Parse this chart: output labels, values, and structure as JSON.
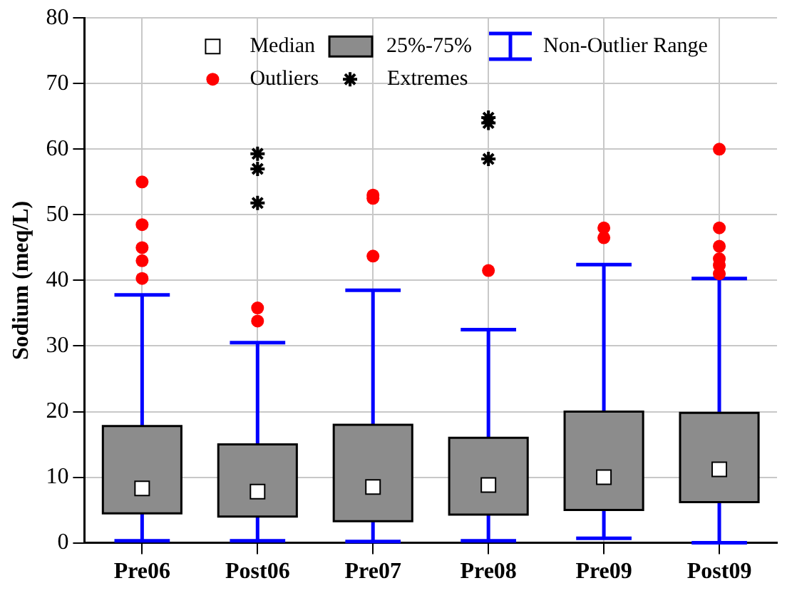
{
  "chart_data": {
    "type": "box",
    "ylabel": "Sodium (meq/L)",
    "categories": [
      "Pre06",
      "Post06",
      "Pre07",
      "Pre08",
      "Pre09",
      "Post09"
    ],
    "ylim": [
      0,
      80
    ],
    "yticks": [
      0,
      10,
      20,
      30,
      40,
      50,
      60,
      70,
      80
    ],
    "grid": true,
    "legend": "top",
    "annotations": [
      "Median",
      "Non-Outlier Range"
    ],
    "series": [
      {
        "type": "box",
        "name": "25%-75%",
        "color": "#8c8c8c",
        "boxes": [
          {
            "low": 0.3,
            "q1": 4.5,
            "median": 8.3,
            "q3": 17.8,
            "high": 37.8
          },
          {
            "low": 0.3,
            "q1": 4,
            "median": 7.8,
            "q3": 15,
            "high": 30.5
          },
          {
            "low": 0.2,
            "q1": 3.3,
            "median": 8.5,
            "q3": 18,
            "high": 38.5
          },
          {
            "low": 0.3,
            "q1": 4.3,
            "median": 8.8,
            "q3": 16,
            "high": 32.5
          },
          {
            "low": 0.7,
            "q1": 5,
            "median": 10,
            "q3": 20,
            "high": 42.4
          },
          {
            "low": 0,
            "q1": 6.2,
            "median": 11.2,
            "q3": 19.8,
            "high": 40.3
          }
        ]
      },
      {
        "type": "scatter",
        "name": "Outliers",
        "color": "#ff0000",
        "marker": "circle",
        "x": [
          "Pre06",
          "Pre06",
          "Pre06",
          "Pre06",
          "Pre06",
          "Post06",
          "Post06",
          "Pre07",
          "Pre07",
          "Pre07",
          "Pre08",
          "Pre09",
          "Pre09",
          "Post09",
          "Post09",
          "Post09",
          "Post09",
          "Post09",
          "Post09"
        ],
        "values": [
          55,
          48.5,
          45,
          43,
          40.3,
          35.8,
          33.8,
          53,
          52.5,
          43.7,
          41.5,
          48,
          46.5,
          60,
          48,
          45.2,
          43.3,
          42.3,
          41
        ]
      },
      {
        "type": "scatter",
        "name": "Extremes",
        "color": "#000000",
        "marker": "cross",
        "x": [
          "Post06",
          "Post06",
          "Post06",
          "Pre08",
          "Pre08",
          "Pre08"
        ],
        "values": [
          59.3,
          57,
          51.8,
          64.8,
          64,
          58.5
        ]
      }
    ]
  }
}
